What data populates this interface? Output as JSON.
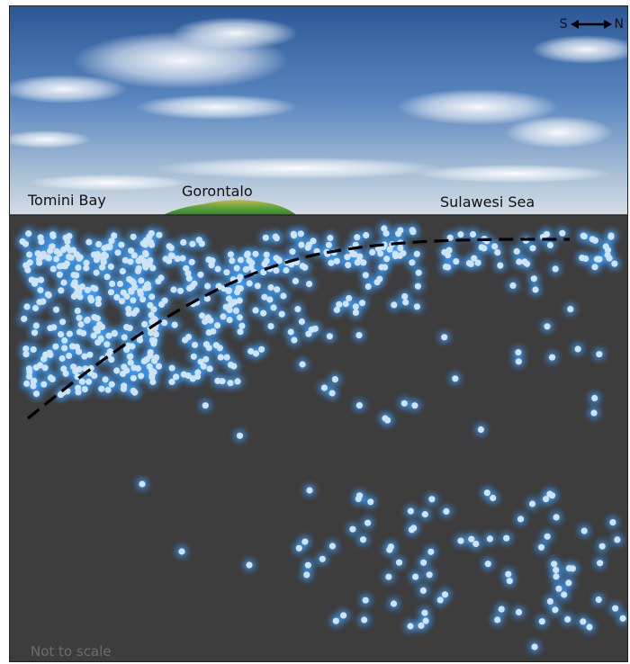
{
  "labels": {
    "left_water": "Tomini Bay",
    "landmass": "Gorontalo",
    "right_water": "Sulawesi Sea"
  },
  "compass": {
    "left": "S",
    "right": "N",
    "icon": "double-arrow-icon"
  },
  "note": "Not to scale",
  "colors": {
    "ground": "#3d3d3d",
    "sky_top": "#2f5c9e",
    "sky_bottom": "#c9d6e3",
    "quake_dot": "#cfe3f2",
    "quake_glow": "#3fa0ff",
    "slab_line": "#000000"
  }
}
